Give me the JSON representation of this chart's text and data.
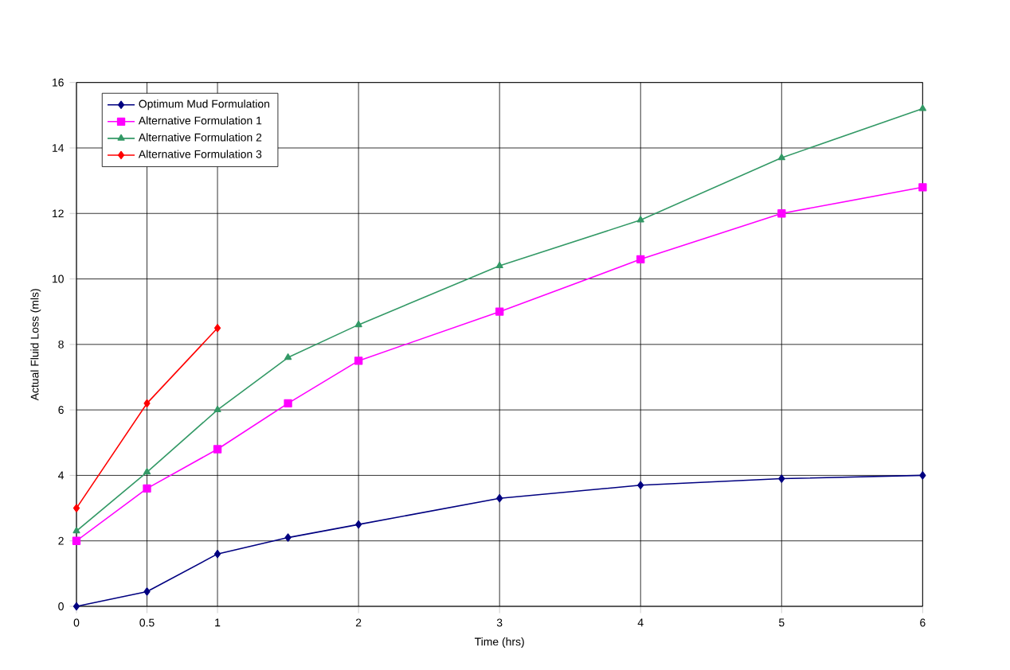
{
  "chart_data": {
    "type": "line",
    "xlabel": "Time (hrs)",
    "ylabel": "Actual Fluid Loss (mls)",
    "xlim": [
      0,
      6
    ],
    "ylim": [
      0,
      16
    ],
    "xticks": [
      0,
      0.5,
      1,
      2,
      3,
      4,
      5,
      6
    ],
    "yticks": [
      0,
      2,
      4,
      6,
      8,
      10,
      12,
      14,
      16
    ],
    "grid": true,
    "legend": "top left",
    "series": [
      {
        "name": "Optimum Mud Formulation",
        "color": "#000080",
        "marker": "diamond",
        "x": [
          0,
          0.5,
          1,
          1.5,
          2,
          3,
          4,
          5,
          6
        ],
        "values": [
          0,
          0.45,
          1.6,
          2.1,
          2.5,
          3.3,
          3.7,
          3.9,
          4.0
        ]
      },
      {
        "name": "Alternative Formulation 1",
        "color": "#ff00ff",
        "marker": "square",
        "x": [
          0,
          0.5,
          1,
          1.5,
          2,
          3,
          4,
          5,
          6
        ],
        "values": [
          2.0,
          3.6,
          4.8,
          6.2,
          7.5,
          9.0,
          10.6,
          12.0,
          12.8
        ]
      },
      {
        "name": "Alternative Formulation 2",
        "color": "#339966",
        "marker": "triangle",
        "x": [
          0,
          0.5,
          1,
          1.5,
          2,
          3,
          4,
          5,
          6
        ],
        "values": [
          2.3,
          4.1,
          6.0,
          7.6,
          8.6,
          10.4,
          11.8,
          13.7,
          15.2
        ]
      },
      {
        "name": "Alternative Formulation 3",
        "color": "#ff0000",
        "marker": "diamond",
        "x": [
          0,
          0.5,
          1
        ],
        "values": [
          3.0,
          6.2,
          8.5
        ]
      }
    ]
  }
}
